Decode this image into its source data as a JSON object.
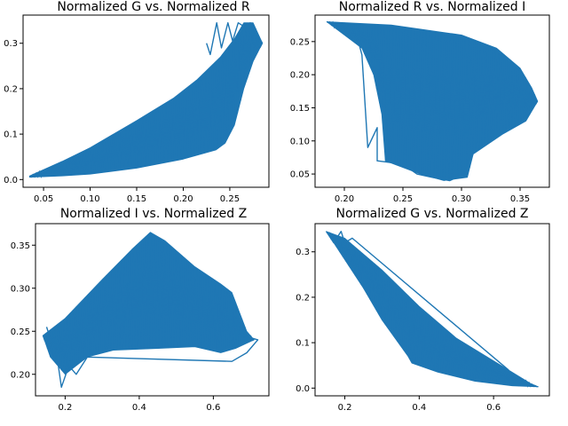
{
  "colors": {
    "series": "#1f77b4",
    "axes": "#000000",
    "background": "#ffffff"
  },
  "chart_data": [
    {
      "type": "line",
      "title": "Normalized G vs. Normalized R",
      "xlabel": "",
      "ylabel": "",
      "xlim": [
        0.028,
        0.292
      ],
      "ylim": [
        -0.017,
        0.362
      ],
      "xticks": [
        0.05,
        0.1,
        0.15,
        0.2,
        0.25
      ],
      "xticklabels": [
        "0.05",
        "0.10",
        "0.15",
        "0.20",
        "0.25"
      ],
      "yticks": [
        0.0,
        0.1,
        0.2,
        0.3
      ],
      "yticklabels": [
        "0.0",
        "0.1",
        "0.2",
        "0.3"
      ],
      "grid": false,
      "series": [
        {
          "values": "dense oscillating trace filling a wedge-shaped band",
          "upper_envelope": [
            [
              0.035,
              0.008
            ],
            [
              0.07,
              0.04
            ],
            [
              0.1,
              0.07
            ],
            [
              0.15,
              0.13
            ],
            [
              0.19,
              0.18
            ],
            [
              0.215,
              0.22
            ],
            [
              0.24,
              0.27
            ],
            [
              0.255,
              0.31
            ],
            [
              0.265,
              0.345
            ],
            [
              0.275,
              0.345
            ],
            [
              0.285,
              0.3
            ]
          ],
          "lower_envelope": [
            [
              0.035,
              0.005
            ],
            [
              0.07,
              0.008
            ],
            [
              0.1,
              0.012
            ],
            [
              0.15,
              0.025
            ],
            [
              0.2,
              0.045
            ],
            [
              0.235,
              0.065
            ],
            [
              0.245,
              0.08
            ],
            [
              0.255,
              0.12
            ],
            [
              0.265,
              0.2
            ],
            [
              0.275,
              0.26
            ],
            [
              0.285,
              0.3
            ]
          ],
          "spikes": [
            [
              0.285,
              0.3
            ],
            [
              0.272,
              0.345
            ],
            [
              0.266,
              0.336
            ],
            [
              0.259,
              0.345
            ],
            [
              0.253,
              0.305
            ],
            [
              0.248,
              0.345
            ],
            [
              0.241,
              0.29
            ],
            [
              0.236,
              0.345
            ],
            [
              0.229,
              0.275
            ],
            [
              0.225,
              0.3
            ]
          ]
        }
      ]
    },
    {
      "type": "line",
      "title": "Normalized R vs. Normalized I",
      "xlabel": "",
      "ylabel": "",
      "xlim": [
        0.175,
        0.375
      ],
      "ylim": [
        0.03,
        0.29
      ],
      "xticks": [
        0.2,
        0.25,
        0.3,
        0.35
      ],
      "xticklabels": [
        "0.20",
        "0.25",
        "0.30",
        "0.35"
      ],
      "yticks": [
        0.05,
        0.1,
        0.15,
        0.2,
        0.25
      ],
      "yticklabels": [
        "0.05",
        "0.10",
        "0.15",
        "0.20",
        "0.25"
      ],
      "grid": false,
      "series": [
        {
          "values": "dense oscillating trace filling a band with a fan-shaped upper-left lobe",
          "upper_envelope": [
            [
              0.185,
              0.28
            ],
            [
              0.24,
              0.275
            ],
            [
              0.3,
              0.26
            ],
            [
              0.33,
              0.24
            ],
            [
              0.35,
              0.21
            ],
            [
              0.36,
              0.18
            ],
            [
              0.365,
              0.16
            ]
          ],
          "lower_envelope": [
            [
              0.185,
              0.28
            ],
            [
              0.215,
              0.24
            ],
            [
              0.225,
              0.2
            ],
            [
              0.232,
              0.14
            ],
            [
              0.235,
              0.07
            ],
            [
              0.265,
              0.05
            ],
            [
              0.285,
              0.04
            ],
            [
              0.305,
              0.045
            ],
            [
              0.31,
              0.08
            ],
            [
              0.335,
              0.11
            ],
            [
              0.355,
              0.13
            ],
            [
              0.365,
              0.16
            ]
          ],
          "spikes": [
            [
              0.185,
              0.28
            ],
            [
              0.205,
              0.27
            ],
            [
              0.212,
              0.25
            ],
            [
              0.215,
              0.23
            ],
            [
              0.22,
              0.09
            ],
            [
              0.228,
              0.12
            ],
            [
              0.228,
              0.07
            ],
            [
              0.25,
              0.065
            ],
            [
              0.262,
              0.05
            ],
            [
              0.275,
              0.045
            ],
            [
              0.29,
              0.04
            ],
            [
              0.302,
              0.05
            ]
          ]
        }
      ]
    },
    {
      "type": "line",
      "title": "Normalized I vs. Normalized Z",
      "xlabel": "",
      "ylabel": "",
      "xlim": [
        0.12,
        0.75
      ],
      "ylim": [
        0.175,
        0.375
      ],
      "xticks": [
        0.2,
        0.4,
        0.6
      ],
      "xticklabels": [
        "0.2",
        "0.4",
        "0.6"
      ],
      "yticks": [
        0.2,
        0.25,
        0.3,
        0.35
      ],
      "yticklabels": [
        "0.20",
        "0.25",
        "0.30",
        "0.35"
      ],
      "grid": false,
      "series": [
        {
          "values": "dense oscillating trace filling a triangular band",
          "upper_envelope": [
            [
              0.14,
              0.245
            ],
            [
              0.2,
              0.265
            ],
            [
              0.3,
              0.31
            ],
            [
              0.38,
              0.345
            ],
            [
              0.43,
              0.365
            ],
            [
              0.47,
              0.355
            ],
            [
              0.55,
              0.325
            ],
            [
              0.62,
              0.305
            ],
            [
              0.65,
              0.295
            ],
            [
              0.69,
              0.25
            ],
            [
              0.71,
              0.24
            ]
          ],
          "lower_envelope": [
            [
              0.14,
              0.245
            ],
            [
              0.16,
              0.22
            ],
            [
              0.2,
              0.2
            ],
            [
              0.26,
              0.22
            ],
            [
              0.33,
              0.228
            ],
            [
              0.45,
              0.23
            ],
            [
              0.55,
              0.232
            ],
            [
              0.62,
              0.225
            ],
            [
              0.66,
              0.23
            ],
            [
              0.71,
              0.24
            ]
          ],
          "spikes": [
            [
              0.15,
              0.255
            ],
            [
              0.18,
              0.215
            ],
            [
              0.19,
              0.185
            ],
            [
              0.21,
              0.21
            ],
            [
              0.23,
              0.2
            ],
            [
              0.26,
              0.22
            ],
            [
              0.65,
              0.215
            ],
            [
              0.69,
              0.225
            ],
            [
              0.72,
              0.24
            ],
            [
              0.68,
              0.245
            ]
          ]
        }
      ]
    },
    {
      "type": "line",
      "title": "Normalized G vs. Normalized Z",
      "xlabel": "",
      "ylabel": "",
      "xlim": [
        0.12,
        0.75
      ],
      "ylim": [
        -0.017,
        0.362
      ],
      "xticks": [
        0.2,
        0.4,
        0.6
      ],
      "xticklabels": [
        "0.2",
        "0.4",
        "0.6"
      ],
      "yticks": [
        0.0,
        0.1,
        0.2,
        0.3
      ],
      "yticklabels": [
        "0.0",
        "0.1",
        "0.2",
        "0.3"
      ],
      "grid": false,
      "series": [
        {
          "values": "dense oscillating trace filling a descending band",
          "upper_envelope": [
            [
              0.15,
              0.345
            ],
            [
              0.2,
              0.33
            ],
            [
              0.3,
              0.26
            ],
            [
              0.4,
              0.18
            ],
            [
              0.5,
              0.11
            ],
            [
              0.6,
              0.06
            ],
            [
              0.7,
              0.01
            ],
            [
              0.72,
              0.003
            ]
          ],
          "lower_envelope": [
            [
              0.15,
              0.345
            ],
            [
              0.25,
              0.22
            ],
            [
              0.3,
              0.15
            ],
            [
              0.37,
              0.07
            ],
            [
              0.38,
              0.055
            ],
            [
              0.45,
              0.035
            ],
            [
              0.55,
              0.015
            ],
            [
              0.65,
              0.005
            ],
            [
              0.72,
              0.003
            ]
          ],
          "spikes": [
            [
              0.15,
              0.345
            ],
            [
              0.17,
              0.32
            ],
            [
              0.19,
              0.345
            ],
            [
              0.2,
              0.32
            ],
            [
              0.22,
              0.33
            ],
            [
              0.64,
              0.04
            ],
            [
              0.6,
              0.04
            ],
            [
              0.7,
              0.005
            ]
          ]
        }
      ]
    }
  ]
}
